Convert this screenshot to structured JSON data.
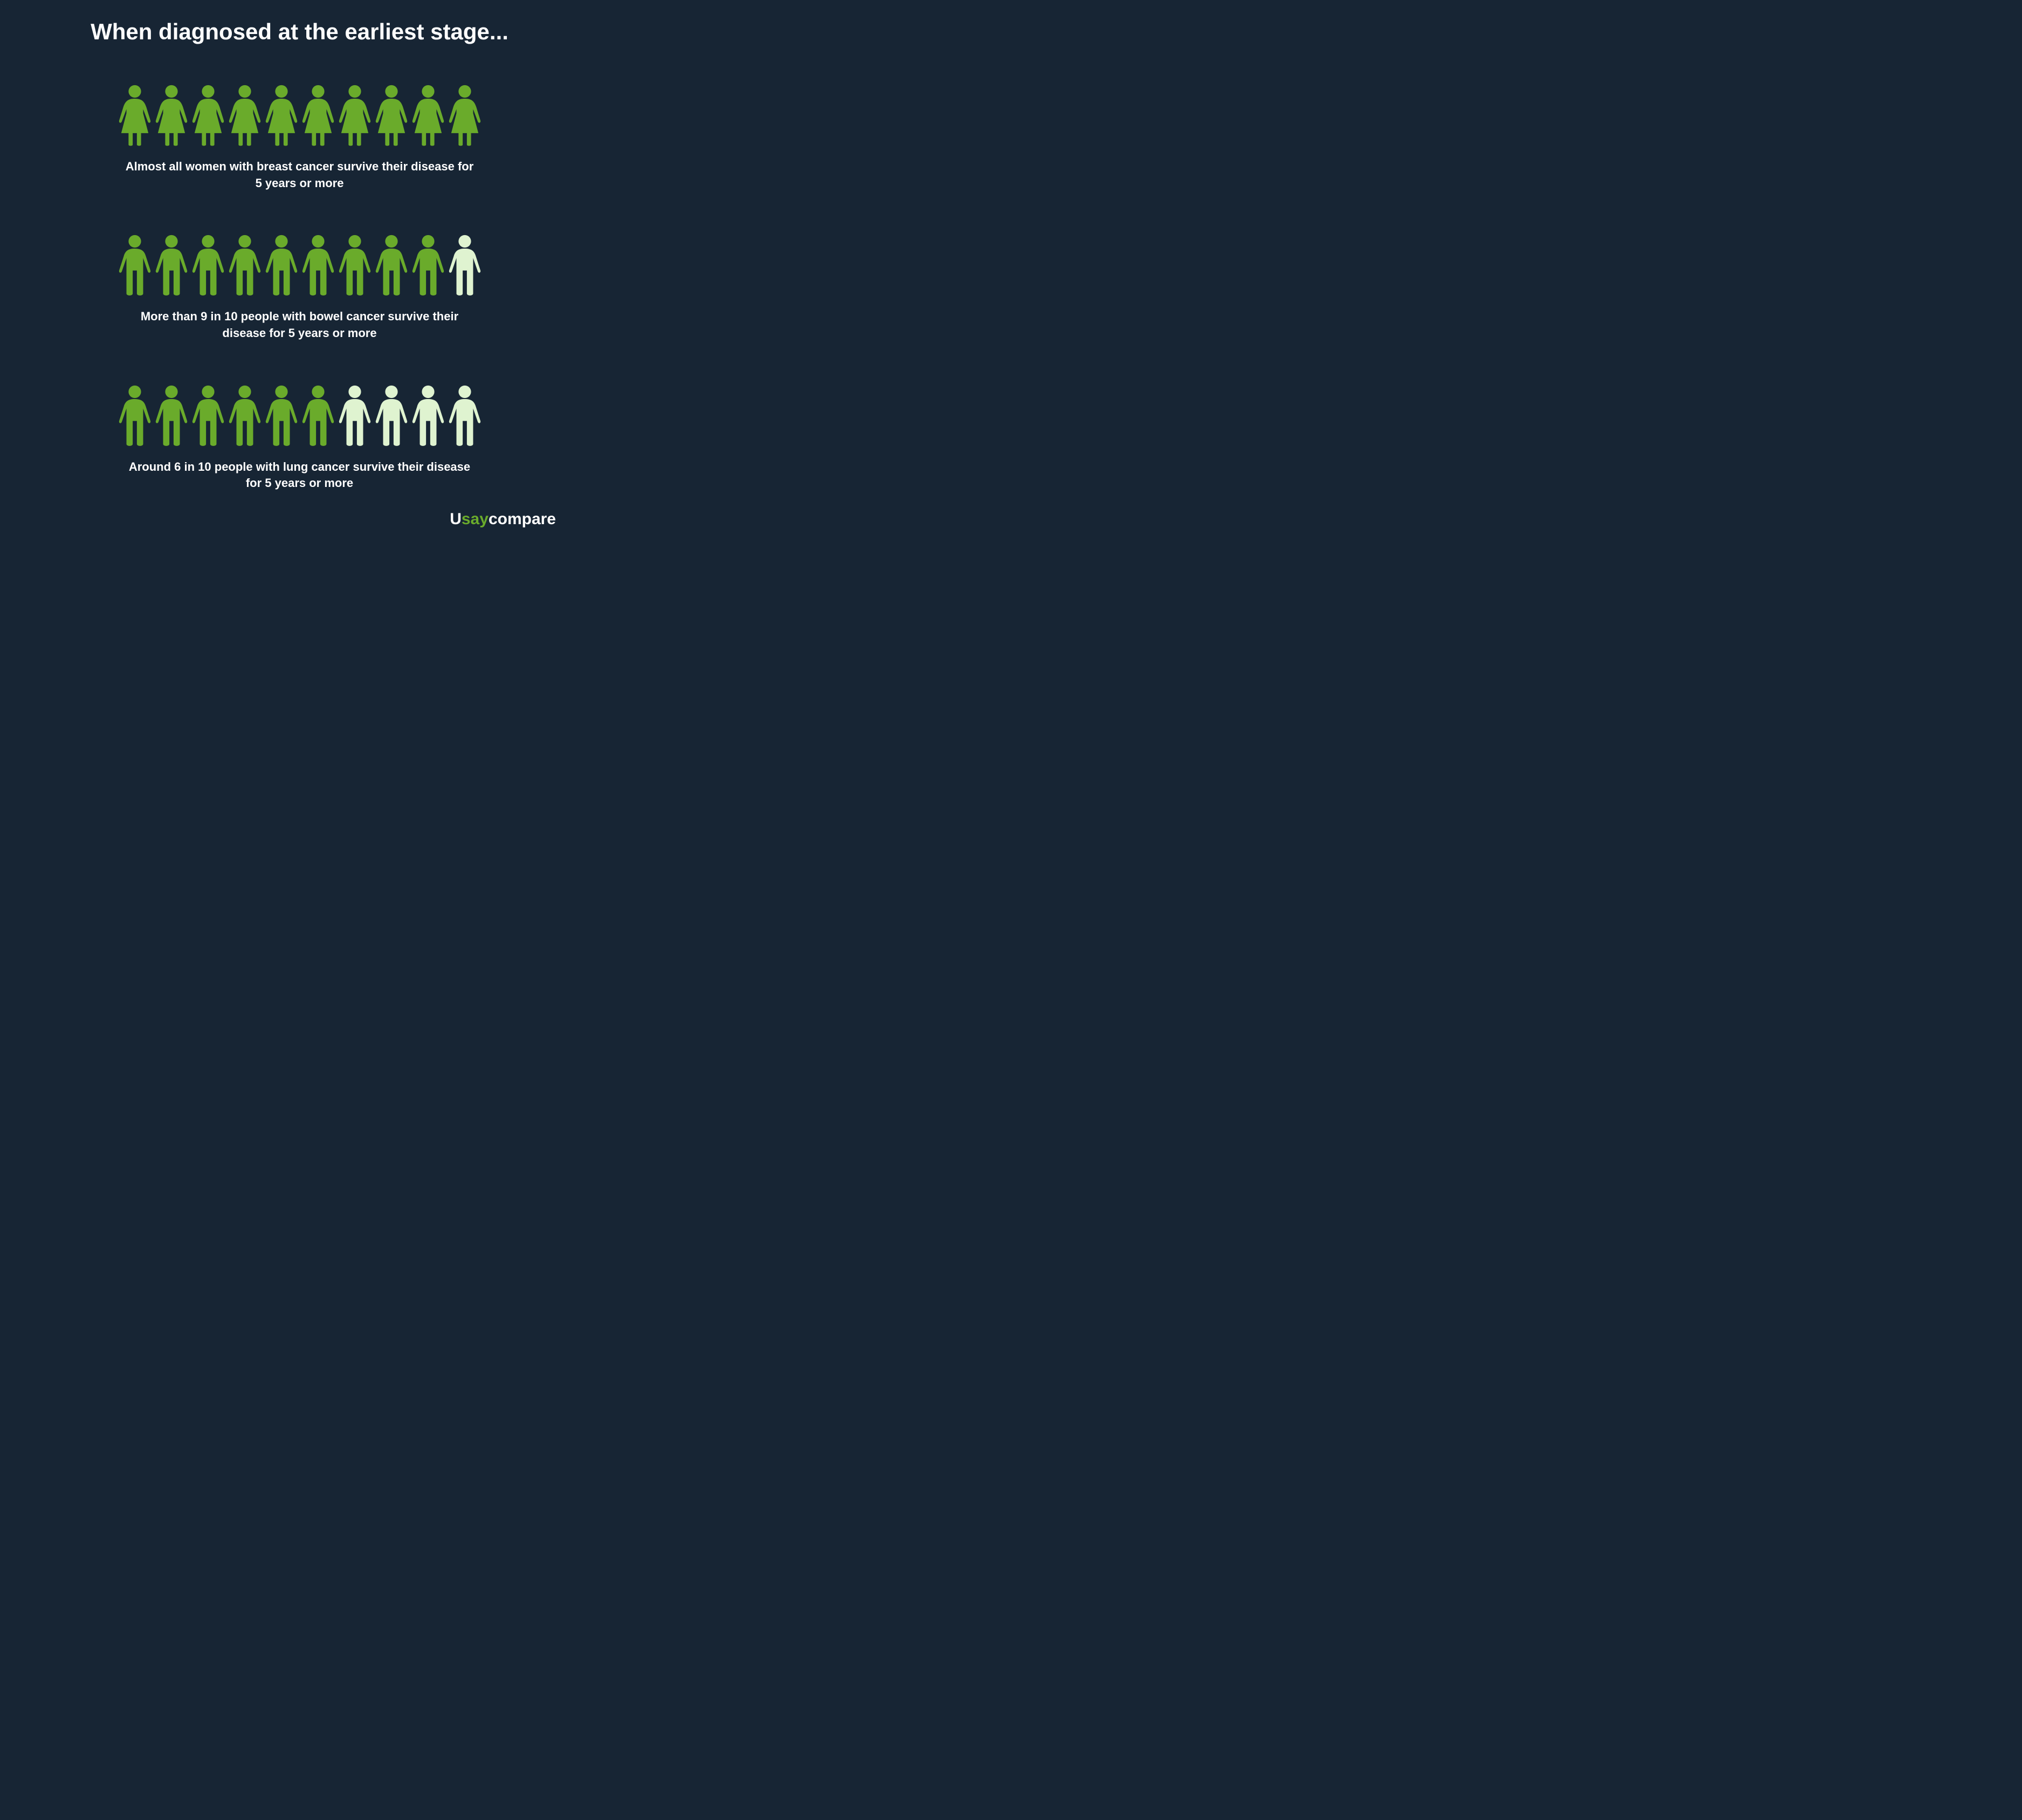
{
  "title": "When diagnosed at the earliest stage...",
  "colors": {
    "background": "#172534",
    "text": "#ffffff",
    "filled": "#6aab2b",
    "unfilled": "#dff3d0",
    "brand_u_color": "#ffffff",
    "brand_say_color": "#6aab2b",
    "brand_compare_color": "#ffffff"
  },
  "icon_size": {
    "width": 80,
    "height": 120
  },
  "sections": [
    {
      "id": "breast",
      "icon": "female",
      "total": 10,
      "filled": 10,
      "caption": "Almost all women with breast cancer survive their disease for 5 years or more"
    },
    {
      "id": "bowel",
      "icon": "male",
      "total": 10,
      "filled": 9,
      "caption": "More than 9 in 10 people with bowel cancer survive their disease for 5 years or more"
    },
    {
      "id": "lung",
      "icon": "male",
      "total": 10,
      "filled": 6,
      "caption": "Around 6 in 10 people with lung cancer survive their disease for 5 years or more"
    }
  ],
  "brand": {
    "u": "U",
    "say": "say",
    "compare": "compare"
  }
}
